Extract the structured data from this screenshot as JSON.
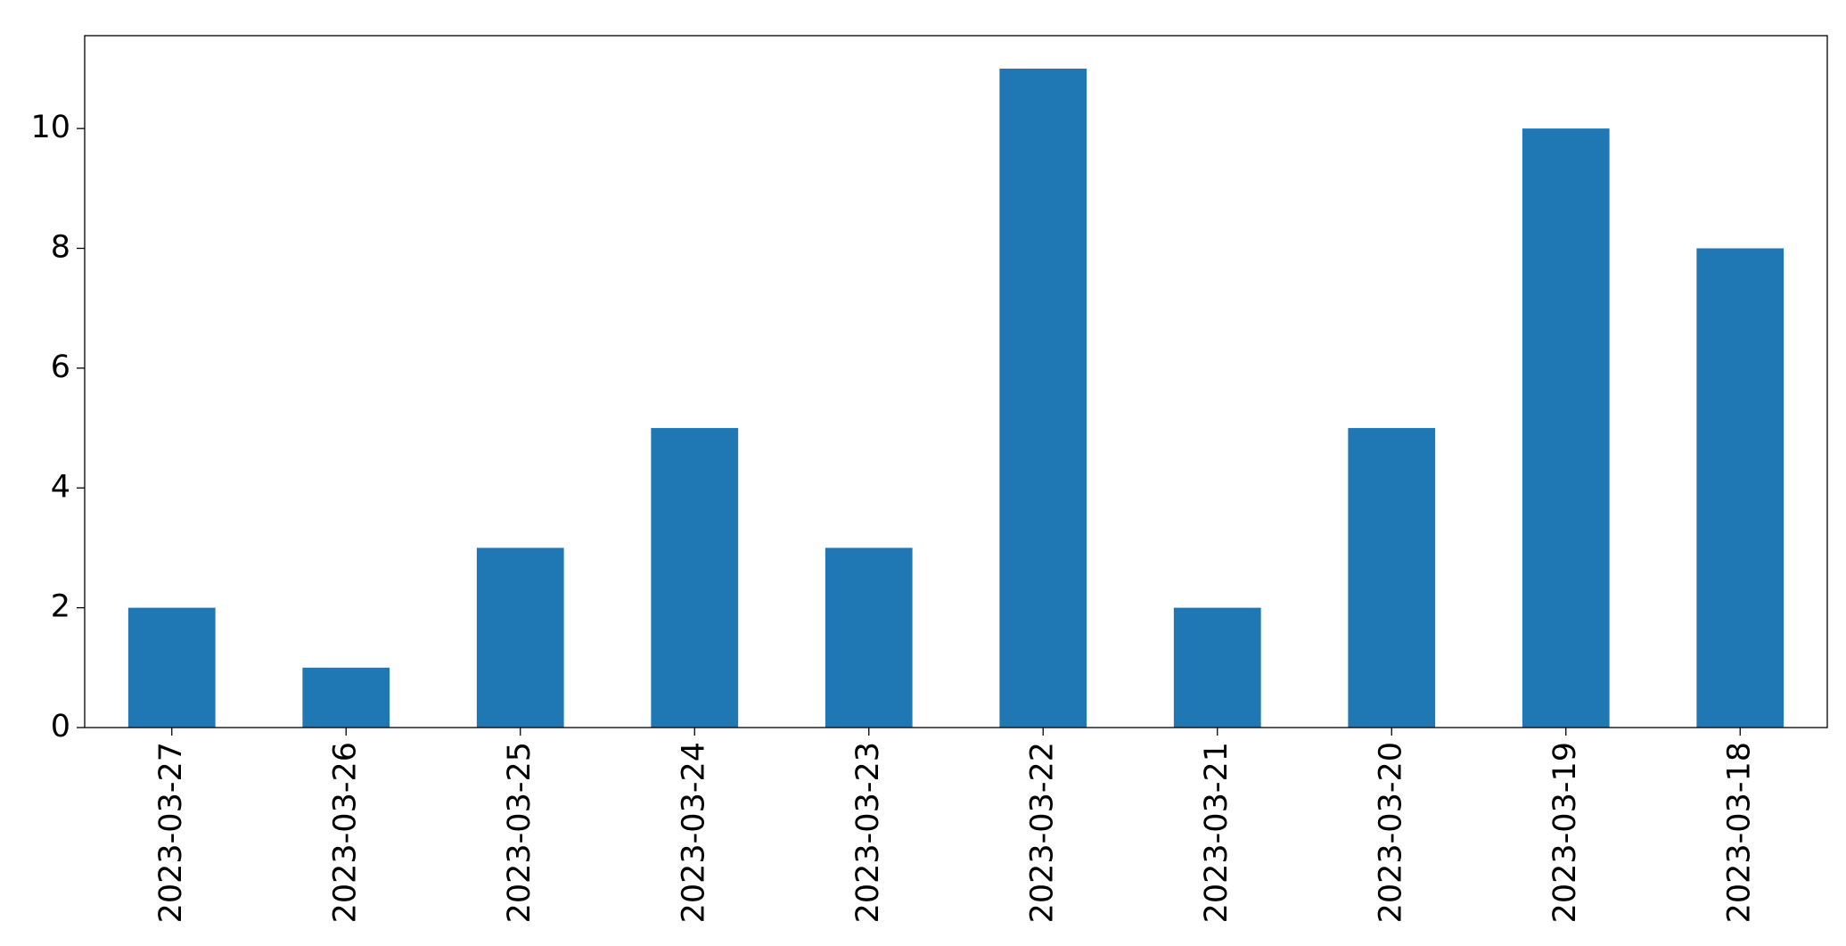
{
  "chart_data": {
    "type": "bar",
    "categories": [
      "2023-03-27",
      "2023-03-26",
      "2023-03-25",
      "2023-03-24",
      "2023-03-23",
      "2023-03-22",
      "2023-03-21",
      "2023-03-20",
      "2023-03-19",
      "2023-03-18"
    ],
    "values": [
      2,
      1,
      3,
      5,
      3,
      11,
      2,
      5,
      10,
      8
    ],
    "color": "#1f77b4",
    "ylim": [
      0,
      11.55
    ],
    "yticks": [
      0,
      2,
      4,
      6,
      8,
      10
    ],
    "grid": false
  }
}
